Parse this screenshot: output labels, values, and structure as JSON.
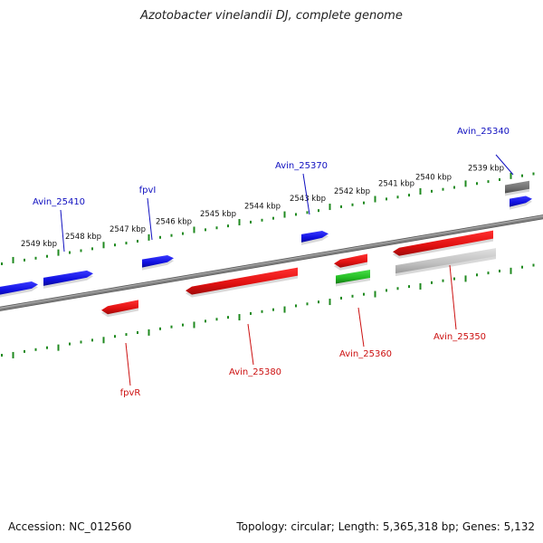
{
  "title": "Azotobacter vinelandii DJ, complete genome",
  "footer": {
    "accession": "Accession: NC_012560",
    "summary": "Topology: circular; Length: 5,365,318 bp; Genes: 5,132"
  },
  "colors": {
    "forward_gene": "#1010e0",
    "reverse_gene": "#e01010",
    "rna_gene": "#22bb22",
    "pseudo_gene": "#c0c0c0",
    "other_gene": "#707070",
    "tick": "#1f8a1f",
    "backbone": "#808080"
  },
  "ruler_ticks": [
    {
      "label": "2539 kbp"
    },
    {
      "label": "2540 kbp"
    },
    {
      "label": "2541 kbp"
    },
    {
      "label": "2542 kbp"
    },
    {
      "label": "2543 kbp"
    },
    {
      "label": "2544 kbp"
    },
    {
      "label": "2545 kbp"
    },
    {
      "label": "2546 kbp"
    },
    {
      "label": "2547 kbp"
    },
    {
      "label": "2548 kbp"
    },
    {
      "label": "2549 kbp"
    }
  ],
  "labeled_genes": [
    {
      "name": "Avin_25340",
      "strand": "forward"
    },
    {
      "name": "Avin_25370",
      "strand": "forward"
    },
    {
      "name": "fpvI",
      "strand": "forward"
    },
    {
      "name": "Avin_25410",
      "strand": "forward"
    },
    {
      "name": "Avin_25350",
      "strand": "reverse"
    },
    {
      "name": "Avin_25360",
      "strand": "reverse"
    },
    {
      "name": "Avin_25380",
      "strand": "reverse"
    },
    {
      "name": "fpvR",
      "strand": "reverse"
    }
  ]
}
